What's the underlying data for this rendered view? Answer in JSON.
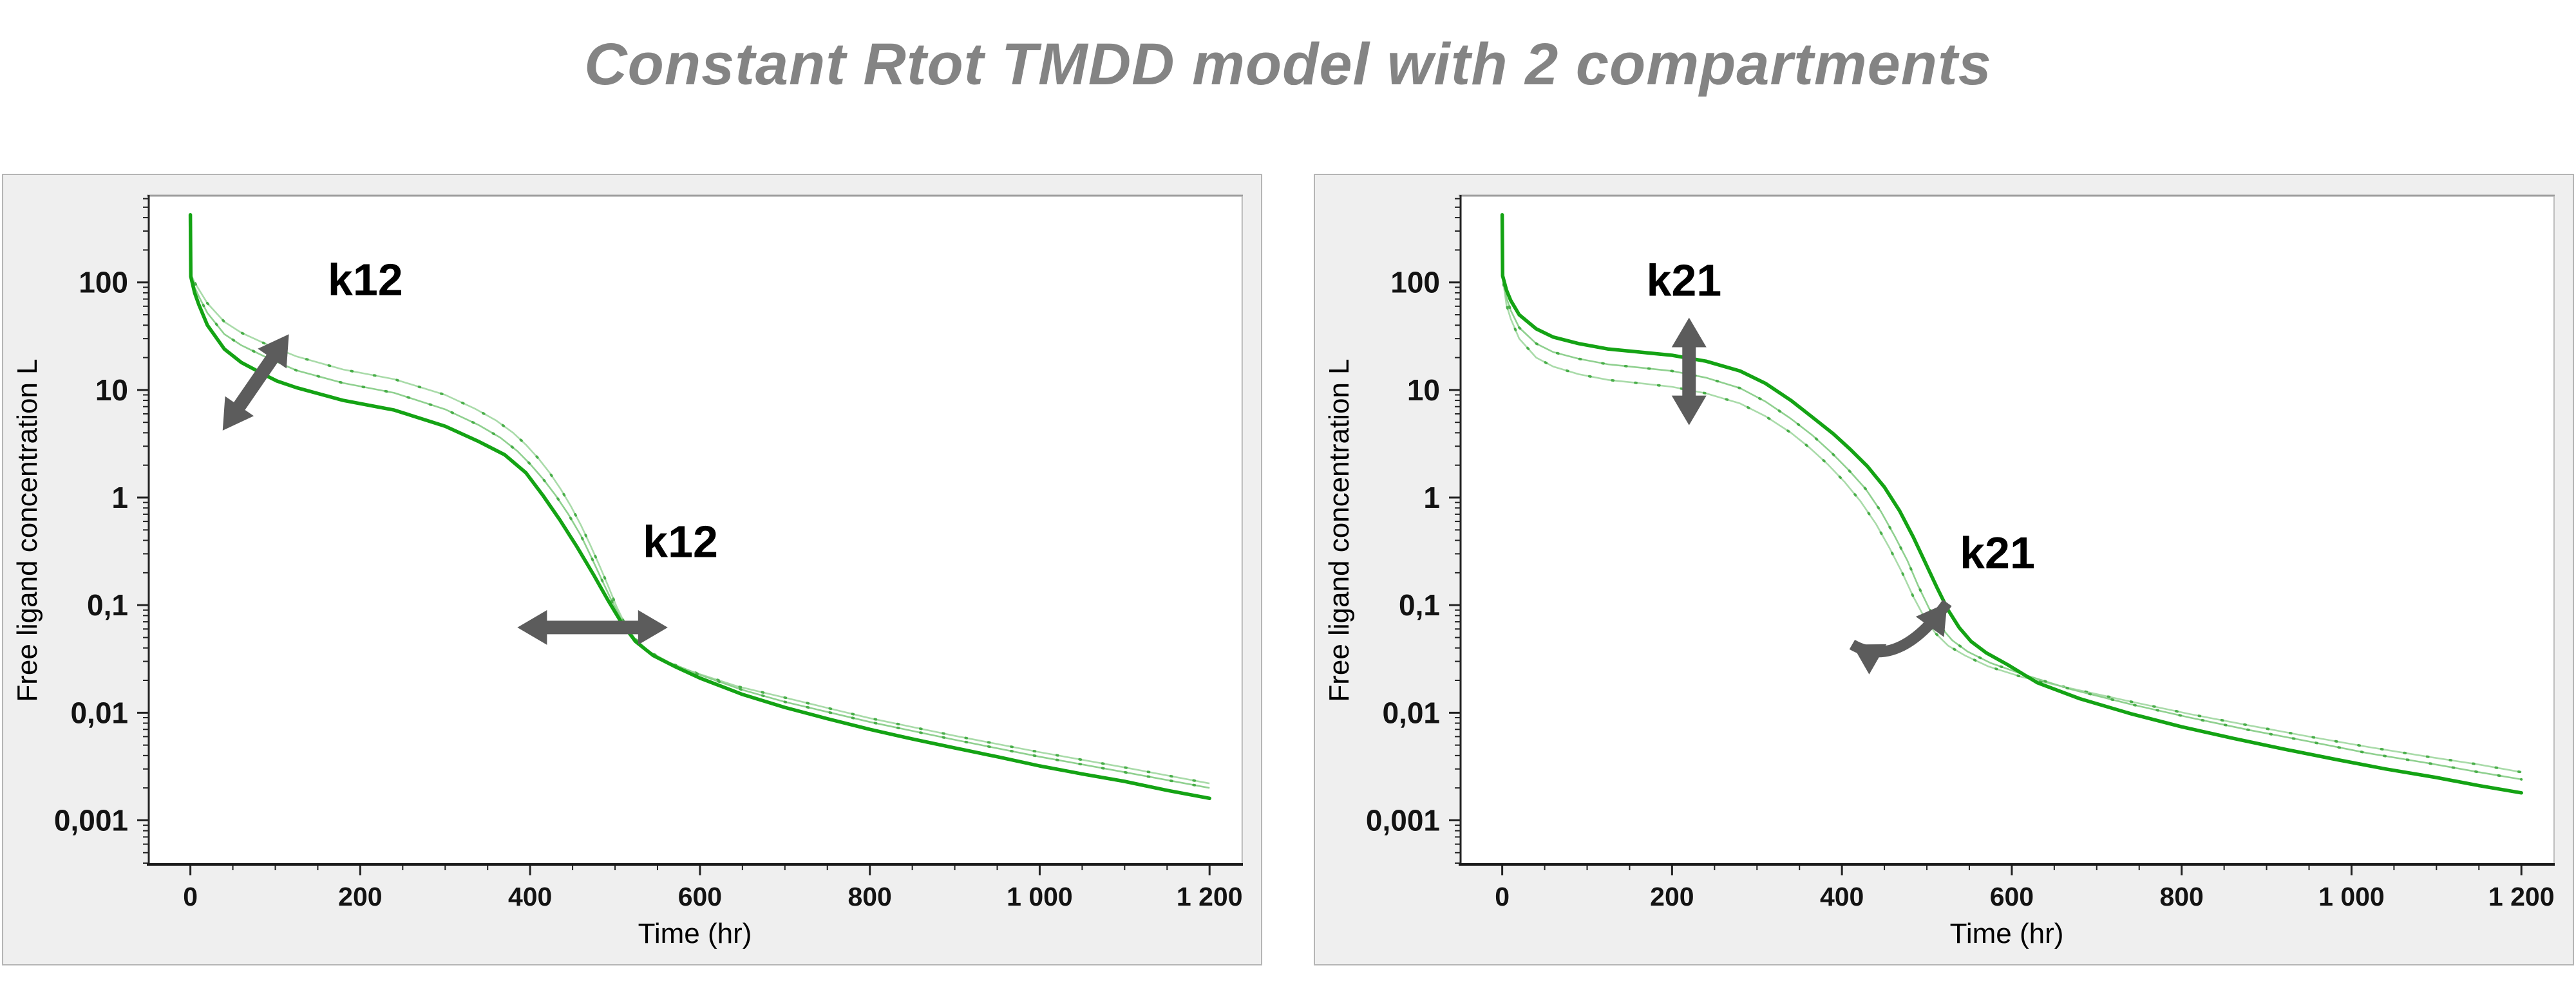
{
  "title": "Constant Rtot TMDD model with 2 compartments",
  "colors": {
    "title_text": "#848484",
    "panel_background": "#efefef",
    "panel_border": "#b5b5b5",
    "axis": "#222222",
    "tick_text": "#131313",
    "arrow": "#5c5c5c",
    "annotation_text": "#000000",
    "curve_bold": "#14a314",
    "curve_light": "#8fd08f",
    "curve_lighter": "#a9dba9",
    "curve_dot": "#49ae49"
  },
  "chart_data": [
    {
      "type": "line",
      "panel": "left",
      "xlabel": "Time (hr)",
      "ylabel": "Free ligand concentration L",
      "y_scale": "log",
      "grid": false,
      "legend": false,
      "xlim": [
        -49,
        1237
      ],
      "ylim_log10": [
        -3.41,
        2.8
      ],
      "x_ticks": [
        0,
        200,
        400,
        600,
        800,
        1000,
        1200
      ],
      "x_tick_labels": [
        "0",
        "200",
        "400",
        "600",
        "800",
        "1 000",
        "1 200"
      ],
      "x_minor_step": 50,
      "y_ticks": [
        100,
        10,
        1,
        0.1,
        0.01,
        0.001
      ],
      "y_tick_labels": [
        "100",
        "10",
        "1",
        "0,1",
        "0,01",
        "0,001"
      ],
      "series": [
        {
          "role": "light-variant-high",
          "style": "light-dotted",
          "color": "#a9dba9",
          "dot_color": "#49ae49",
          "width": 2.6,
          "points": [
            [
              0,
              425
            ],
            [
              0.5,
              119
            ],
            [
              5,
              100
            ],
            [
              10,
              86
            ],
            [
              20,
              64
            ],
            [
              40,
              43
            ],
            [
              60,
              34
            ],
            [
              90,
              26.5
            ],
            [
              125,
              20.5
            ],
            [
              180,
              15.5
            ],
            [
              240,
              12.6
            ],
            [
              300,
              9.0
            ],
            [
              335,
              6.7
            ],
            [
              360,
              5.2
            ],
            [
              380,
              4.0
            ],
            [
              395,
              3.1
            ],
            [
              410,
              2.3
            ],
            [
              423,
              1.7
            ],
            [
              436,
              1.2
            ],
            [
              448,
              0.83
            ],
            [
              460,
              0.55
            ],
            [
              471,
              0.36
            ],
            [
              482,
              0.23
            ],
            [
              492,
              0.15
            ],
            [
              502,
              0.096
            ],
            [
              512,
              0.066
            ],
            [
              524,
              0.048
            ],
            [
              540,
              0.037
            ],
            [
              562,
              0.029
            ],
            [
              595,
              0.0235
            ],
            [
              645,
              0.0175
            ],
            [
              700,
              0.0138
            ],
            [
              800,
              0.0089
            ],
            [
              900,
              0.0061
            ],
            [
              1000,
              0.0043
            ],
            [
              1100,
              0.0031
            ],
            [
              1200,
              0.0022
            ]
          ]
        },
        {
          "role": "light-variant-mid",
          "style": "light-dotted",
          "color": "#8fd08f",
          "dot_color": "#49ae49",
          "width": 2.6,
          "points": [
            [
              0,
              425
            ],
            [
              0.5,
              116
            ],
            [
              5,
              90
            ],
            [
              10,
              74
            ],
            [
              20,
              52
            ],
            [
              40,
              33
            ],
            [
              60,
              26
            ],
            [
              90,
              20
            ],
            [
              125,
              15.2
            ],
            [
              180,
              11.6
            ],
            [
              240,
              9.4
            ],
            [
              300,
              6.6
            ],
            [
              340,
              4.7
            ],
            [
              365,
              3.6
            ],
            [
              385,
              2.7
            ],
            [
              400,
              2.05
            ],
            [
              415,
              1.5
            ],
            [
              430,
              1.05
            ],
            [
              445,
              0.7
            ],
            [
              460,
              0.44
            ],
            [
              472,
              0.28
            ],
            [
              484,
              0.175
            ],
            [
              496,
              0.11
            ],
            [
              508,
              0.072
            ],
            [
              522,
              0.05
            ],
            [
              540,
              0.037
            ],
            [
              565,
              0.029
            ],
            [
              600,
              0.0225
            ],
            [
              650,
              0.0163
            ],
            [
              700,
              0.0126
            ],
            [
              800,
              0.0082
            ],
            [
              900,
              0.0056
            ],
            [
              1000,
              0.0039
            ],
            [
              1100,
              0.0028
            ],
            [
              1200,
              0.002
            ]
          ]
        },
        {
          "role": "reference-bold",
          "style": "solid",
          "color": "#14a314",
          "width": 5.5,
          "points": [
            [
              0,
              425
            ],
            [
              0.5,
              113
            ],
            [
              5,
              80
            ],
            [
              10,
              62
            ],
            [
              20,
              40
            ],
            [
              40,
              24
            ],
            [
              60,
              18
            ],
            [
              90,
              13.5
            ],
            [
              102,
              12.1
            ],
            [
              125,
              10.5
            ],
            [
              180,
              8.0
            ],
            [
              240,
              6.5
            ],
            [
              300,
              4.6
            ],
            [
              340,
              3.3
            ],
            [
              370,
              2.5
            ],
            [
              395,
              1.7
            ],
            [
              415,
              1.05
            ],
            [
              435,
              0.62
            ],
            [
              455,
              0.35
            ],
            [
              475,
              0.19
            ],
            [
              492,
              0.11
            ],
            [
              508,
              0.068
            ],
            [
              524,
              0.046
            ],
            [
              545,
              0.034
            ],
            [
              570,
              0.027
            ],
            [
              600,
              0.021
            ],
            [
              650,
              0.0148
            ],
            [
              700,
              0.0112
            ],
            [
              750,
              0.0088
            ],
            [
              800,
              0.007
            ],
            [
              850,
              0.0057
            ],
            [
              900,
              0.0047
            ],
            [
              950,
              0.0039
            ],
            [
              1000,
              0.0032
            ],
            [
              1050,
              0.0027
            ],
            [
              1100,
              0.0023
            ],
            [
              1150,
              0.0019
            ],
            [
              1200,
              0.0016
            ]
          ]
        }
      ],
      "annotations": [
        {
          "kind": "double-arrow",
          "x1": 38,
          "y1": 4.2,
          "x2": 116,
          "y2": 33
        },
        {
          "kind": "label",
          "text": "k12",
          "x": 206,
          "y": 76
        },
        {
          "kind": "double-arrow",
          "x1": 385,
          "y1": 0.062,
          "x2": 562,
          "y2": 0.062
        },
        {
          "kind": "label",
          "text": "k12",
          "x": 577,
          "y": 0.28
        }
      ]
    },
    {
      "type": "line",
      "panel": "right",
      "xlabel": "Time (hr)",
      "ylabel": "Free ligand concentration L",
      "y_scale": "log",
      "grid": false,
      "legend": false,
      "xlim": [
        -49,
        1237
      ],
      "ylim_log10": [
        -3.41,
        2.8
      ],
      "x_ticks": [
        0,
        200,
        400,
        600,
        800,
        1000,
        1200
      ],
      "x_tick_labels": [
        "0",
        "200",
        "400",
        "600",
        "800",
        "1 000",
        "1 200"
      ],
      "x_minor_step": 50,
      "y_ticks": [
        100,
        10,
        1,
        0.1,
        0.01,
        0.001
      ],
      "y_tick_labels": [
        "100",
        "10",
        "1",
        "0,1",
        "0,01",
        "0,001"
      ],
      "series": [
        {
          "role": "light-variant-low",
          "style": "light-dotted",
          "color": "#a9dba9",
          "dot_color": "#49ae49",
          "width": 2.6,
          "points": [
            [
              0,
              425
            ],
            [
              0.5,
              110
            ],
            [
              5,
              62
            ],
            [
              10,
              46
            ],
            [
              20,
              30
            ],
            [
              40,
              20
            ],
            [
              60,
              16.5
            ],
            [
              90,
              14
            ],
            [
              125,
              12.4
            ],
            [
              160,
              11.6
            ],
            [
              200,
              10.7
            ],
            [
              240,
              9.3
            ],
            [
              280,
              7.5
            ],
            [
              310,
              5.7
            ],
            [
              340,
              4.0
            ],
            [
              362,
              2.9
            ],
            [
              383,
              2.05
            ],
            [
              403,
              1.4
            ],
            [
              422,
              0.92
            ],
            [
              440,
              0.57
            ],
            [
              456,
              0.34
            ],
            [
              471,
              0.2
            ],
            [
              484,
              0.12
            ],
            [
              497,
              0.077
            ],
            [
              510,
              0.055
            ],
            [
              525,
              0.042
            ],
            [
              545,
              0.034
            ],
            [
              572,
              0.027
            ],
            [
              612,
              0.0215
            ],
            [
              670,
              0.0168
            ],
            [
              740,
              0.0127
            ],
            [
              810,
              0.0097
            ],
            [
              880,
              0.0076
            ],
            [
              950,
              0.006
            ],
            [
              1020,
              0.0048
            ],
            [
              1090,
              0.0039
            ],
            [
              1150,
              0.0033
            ],
            [
              1200,
              0.0028
            ]
          ]
        },
        {
          "role": "light-variant-mid",
          "style": "light-dotted",
          "color": "#8fd08f",
          "dot_color": "#49ae49",
          "width": 2.6,
          "points": [
            [
              0,
              425
            ],
            [
              0.5,
              112
            ],
            [
              5,
              72
            ],
            [
              10,
              55
            ],
            [
              20,
              38
            ],
            [
              40,
              27
            ],
            [
              60,
              22.5
            ],
            [
              90,
              19.5
            ],
            [
              125,
              17.3
            ],
            [
              160,
              16.2
            ],
            [
              200,
              15
            ],
            [
              240,
              13
            ],
            [
              280,
              10.4
            ],
            [
              310,
              7.8
            ],
            [
              340,
              5.4
            ],
            [
              365,
              3.8
            ],
            [
              388,
              2.6
            ],
            [
              408,
              1.8
            ],
            [
              428,
              1.2
            ],
            [
              446,
              0.74
            ],
            [
              462,
              0.44
            ],
            [
              477,
              0.26
            ],
            [
              490,
              0.15
            ],
            [
              503,
              0.092
            ],
            [
              516,
              0.063
            ],
            [
              530,
              0.047
            ],
            [
              548,
              0.037
            ],
            [
              575,
              0.029
            ],
            [
              615,
              0.0225
            ],
            [
              670,
              0.0165
            ],
            [
              740,
              0.012
            ],
            [
              810,
              0.009
            ],
            [
              880,
              0.0069
            ],
            [
              950,
              0.0054
            ],
            [
              1020,
              0.0042
            ],
            [
              1090,
              0.0034
            ],
            [
              1150,
              0.0028
            ],
            [
              1200,
              0.0024
            ]
          ]
        },
        {
          "role": "reference-bold",
          "style": "solid",
          "color": "#14a314",
          "width": 5.5,
          "points": [
            [
              0,
              425
            ],
            [
              0.5,
              115
            ],
            [
              5,
              85
            ],
            [
              10,
              68
            ],
            [
              20,
              50
            ],
            [
              40,
              37
            ],
            [
              60,
              31
            ],
            [
              90,
              27
            ],
            [
              125,
              24
            ],
            [
              160,
              22.6
            ],
            [
              200,
              21
            ],
            [
              240,
              18.5
            ],
            [
              280,
              15
            ],
            [
              310,
              11.5
            ],
            [
              340,
              8.0
            ],
            [
              365,
              5.6
            ],
            [
              390,
              3.9
            ],
            [
              410,
              2.8
            ],
            [
              430,
              1.95
            ],
            [
              450,
              1.25
            ],
            [
              468,
              0.75
            ],
            [
              484,
              0.43
            ],
            [
              498,
              0.25
            ],
            [
              512,
              0.145
            ],
            [
              525,
              0.09
            ],
            [
              538,
              0.062
            ],
            [
              552,
              0.046
            ],
            [
              570,
              0.036
            ],
            [
              595,
              0.028
            ],
            [
              630,
              0.019
            ],
            [
              680,
              0.0135
            ],
            [
              740,
              0.0098
            ],
            [
              800,
              0.0074
            ],
            [
              860,
              0.0058
            ],
            [
              920,
              0.0046
            ],
            [
              980,
              0.0037
            ],
            [
              1040,
              0.003
            ],
            [
              1100,
              0.0025
            ],
            [
              1150,
              0.0021
            ],
            [
              1200,
              0.0018
            ]
          ]
        }
      ],
      "annotations": [
        {
          "kind": "label",
          "text": "k21",
          "x": 214,
          "y": 75
        },
        {
          "kind": "double-arrow",
          "x1": 220,
          "y1": 47,
          "x2": 220,
          "y2": 4.7
        },
        {
          "kind": "curved-arrow",
          "x1": 412,
          "y1": 0.043,
          "cx": 466,
          "cy": 0.0245,
          "x2": 524,
          "y2": 0.105
        },
        {
          "kind": "label",
          "text": "k21",
          "x": 583,
          "y": 0.22
        }
      ]
    }
  ]
}
